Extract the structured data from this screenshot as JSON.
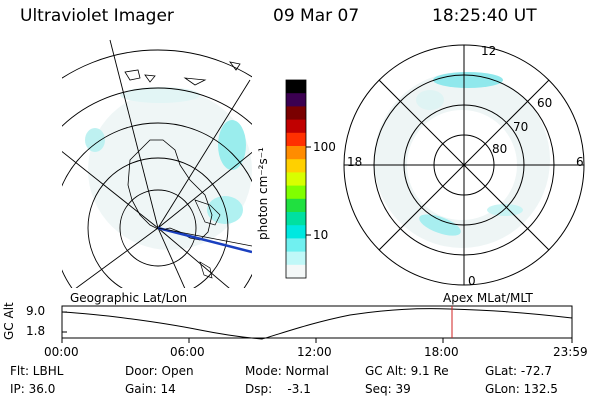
{
  "header": {
    "title": "Ultraviolet Imager",
    "date": "09 Mar 07",
    "time": "18:25:40 UT"
  },
  "colorbar": {
    "unit_label": "photon cm⁻²s⁻¹",
    "ticks": [
      "100",
      "10"
    ],
    "colors": [
      "#000000",
      "#3b0050",
      "#7a0000",
      "#c00000",
      "#ff3000",
      "#ff8c00",
      "#ffd000",
      "#d8ff00",
      "#80ff00",
      "#20e040",
      "#00e0a0",
      "#00e8e0",
      "#70f0f0",
      "#c0f8f8",
      "#f4f8f8"
    ]
  },
  "left_panel": {
    "label": "Geographic Lat/Lon"
  },
  "right_panel": {
    "label": "Apex MLat/MLT",
    "mlt_labels": {
      "top": "12",
      "left": "18",
      "right": "6",
      "bottom": "0"
    },
    "mlat_labels": [
      "60",
      "70",
      "80"
    ]
  },
  "altitude_strip": {
    "axis_label": "GC Alt",
    "y_ticks": [
      "9.0",
      "1.8"
    ],
    "x_ticks": [
      "00:00",
      "06:00",
      "12:00",
      "18:00",
      "23:59"
    ],
    "current_marker_color": "#d02020"
  },
  "info": {
    "flt": "Flt: LBHL",
    "ip": "IP: 36.0",
    "door": "Door: Open",
    "gain": "Gain: 14",
    "mode": "Mode: Normal",
    "dsp": "Dsp:    -3.1",
    "gcalt": "GC Alt: 9.1 Re",
    "seq": "Seq: 39",
    "glat": "GLat: -72.7",
    "glon": "GLon: 132.5"
  }
}
